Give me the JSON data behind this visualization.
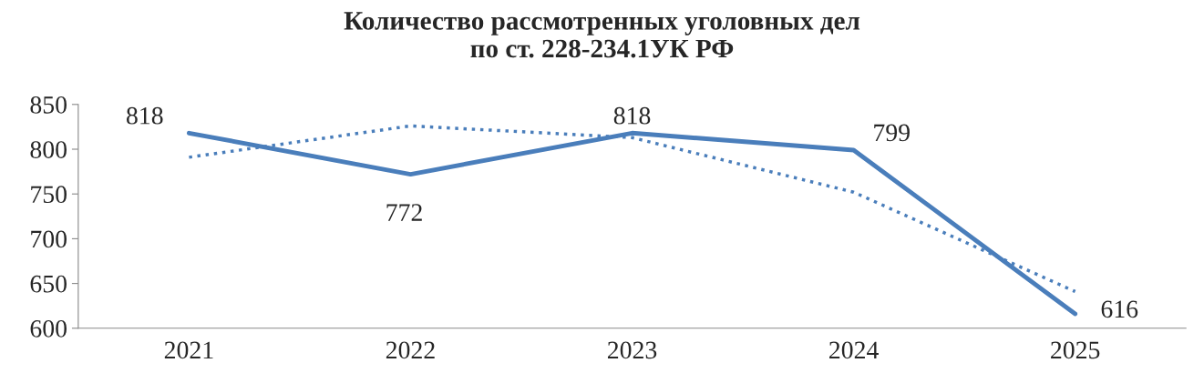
{
  "chart_data": {
    "type": "line",
    "title": "Количество рассмотренных уголовных дел\nпо ст. 228-234.1УК РФ",
    "categories": [
      "2021",
      "2022",
      "2023",
      "2024",
      "2025"
    ],
    "series": [
      {
        "color": "#4a7ebb",
        "values": [
          818,
          772,
          818,
          799,
          616
        ],
        "value_labels": [
          "818",
          "772",
          "818",
          "799",
          "616"
        ],
        "line_style": "solid"
      },
      {
        "type": "line",
        "color": "#4a7ebb",
        "values": [
          791,
          826,
          813,
          752,
          641
        ],
        "line_style": "dotted"
      }
    ],
    "ylim": [
      600,
      850
    ],
    "yticks": [
      600,
      650,
      700,
      750,
      800,
      850
    ],
    "grid": false,
    "legend": false,
    "marker": "none"
  }
}
